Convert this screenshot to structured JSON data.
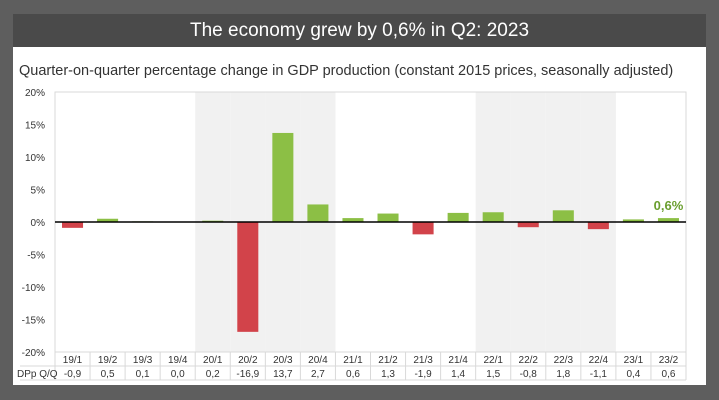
{
  "header": {
    "title": "The economy grew by 0,6% in Q2: 2023"
  },
  "chart_data": {
    "type": "bar",
    "title": "Quarter-on-quarter percentage change in GDP production (constant 2015 prices, seasonally adjusted)",
    "categories": [
      "19/1",
      "19/2",
      "19/3",
      "19/4",
      "20/1",
      "20/2",
      "20/3",
      "20/4",
      "21/1",
      "21/2",
      "21/3",
      "21/4",
      "22/1",
      "22/2",
      "22/3",
      "22/4",
      "23/1",
      "23/2"
    ],
    "series": [
      {
        "name": "DPp Q/Q",
        "values": [
          -0.9,
          0.5,
          0.1,
          0.0,
          0.2,
          -16.9,
          13.7,
          2.7,
          0.6,
          1.3,
          -1.9,
          1.4,
          1.5,
          -0.8,
          1.8,
          -1.1,
          0.4,
          0.6
        ]
      }
    ],
    "value_labels": [
      "-0,9",
      "0,5",
      "0,1",
      "0,0",
      "0,2",
      "-16,9",
      "13,7",
      "2,7",
      "0,6",
      "1,3",
      "-1,9",
      "1,4",
      "1,5",
      "-0,8",
      "1,8",
      "-1,1",
      "0,4",
      "0,6"
    ],
    "yticks": [
      "20%",
      "15%",
      "10%",
      "5%",
      "0%",
      "-5%",
      "-10%",
      "-15%",
      "-20%"
    ],
    "ylim": [
      -20,
      20
    ],
    "annotation": "0,6%",
    "shaded_years": [
      "20",
      "22"
    ],
    "colors": {
      "positive": "#8cbf45",
      "negative": "#d2434a",
      "annotation": "#6a9e2e",
      "shade": "#f1f1f1"
    }
  }
}
